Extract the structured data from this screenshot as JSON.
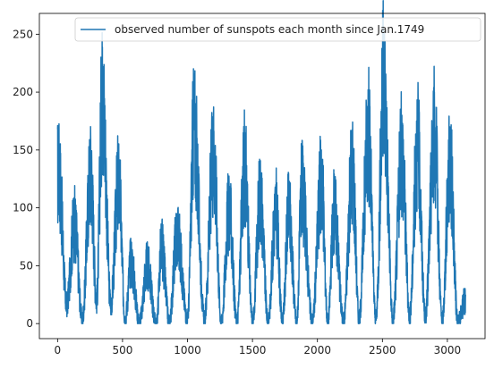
{
  "chart_data": {
    "type": "line",
    "title": "",
    "xlabel": "",
    "ylabel": "",
    "xlim": [
      -140,
      3290
    ],
    "ylim": [
      -13,
      268
    ],
    "xticks": [
      0,
      500,
      1000,
      1500,
      2000,
      2500,
      3000
    ],
    "yticks": [
      0,
      50,
      100,
      150,
      200,
      250
    ],
    "grid": false,
    "legend": {
      "placement": "top-right"
    },
    "color": "#1f77b4",
    "series": [
      {
        "name": "observed number of sunspots each month since Jan.1749",
        "peaks": [
          [
            10,
            158
          ],
          [
            130,
            105
          ],
          [
            255,
            158
          ],
          [
            345,
            239
          ],
          [
            470,
            150
          ],
          [
            565,
            65
          ],
          [
            690,
            60
          ],
          [
            800,
            80
          ],
          [
            920,
            95
          ],
          [
            1050,
            206
          ],
          [
            1200,
            180
          ],
          [
            1320,
            120
          ],
          [
            1440,
            165
          ],
          [
            1560,
            135
          ],
          [
            1680,
            120
          ],
          [
            1780,
            118
          ],
          [
            1880,
            140
          ],
          [
            2030,
            150
          ],
          [
            2130,
            120
          ],
          [
            2270,
            165
          ],
          [
            2390,
            202
          ],
          [
            2510,
            254
          ],
          [
            2650,
            180
          ],
          [
            2770,
            188
          ],
          [
            2900,
            200
          ],
          [
            3020,
            170
          ]
        ],
        "troughs": [
          [
            70,
            20
          ],
          [
            190,
            5
          ],
          [
            300,
            25
          ],
          [
            410,
            20
          ],
          [
            520,
            5
          ],
          [
            630,
            2
          ],
          [
            760,
            0
          ],
          [
            860,
            2
          ],
          [
            1000,
            5
          ],
          [
            1130,
            5
          ],
          [
            1260,
            2
          ],
          [
            1380,
            2
          ],
          [
            1500,
            3
          ],
          [
            1620,
            2
          ],
          [
            1730,
            2
          ],
          [
            1840,
            2
          ],
          [
            1960,
            3
          ],
          [
            2080,
            2
          ],
          [
            2200,
            3
          ],
          [
            2320,
            5
          ],
          [
            2450,
            5
          ],
          [
            2580,
            5
          ],
          [
            2710,
            8
          ],
          [
            2830,
            8
          ],
          [
            2960,
            3
          ],
          [
            3080,
            2
          ]
        ],
        "last": [
          3140,
          25
        ]
      }
    ]
  }
}
